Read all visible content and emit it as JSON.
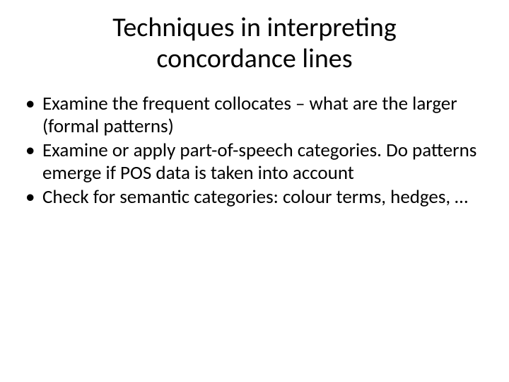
{
  "slide": {
    "title_line1": "Techniques in interpreting",
    "title_line2": "concordance lines",
    "bullets": [
      "Examine the frequent collocates – what are the larger (formal patterns)",
      "Examine or apply part-of-speech categories. Do patterns emerge if POS data is taken into account",
      "Check for semantic categories: colour terms, hedges, …"
    ]
  },
  "style": {
    "background_color": "#ffffff",
    "text_color": "#000000",
    "title_fontsize": 38,
    "body_fontsize": 27,
    "font_family": "Calibri",
    "bullet_glyph": "•"
  }
}
